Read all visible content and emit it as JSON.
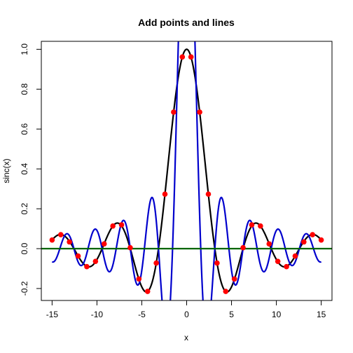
{
  "chart_data": {
    "type": "line",
    "title": "Add points and lines",
    "xlabel": "x",
    "ylabel": "sinc(x)",
    "xlim": [
      -16.2,
      16.2
    ],
    "ylim": [
      -0.26,
      1.04
    ],
    "xticks": [
      -15,
      -10,
      -5,
      0,
      5,
      10,
      15
    ],
    "xtick_labels": [
      "-15",
      "-10",
      "-5",
      "0",
      "5",
      "10",
      "15"
    ],
    "yticks": [
      -0.2,
      0.0,
      0.2,
      0.4,
      0.6,
      0.8,
      1.0
    ],
    "ytick_labels": [
      "-0.2",
      "0.0",
      "0.2",
      "0.4",
      "0.6",
      "0.8",
      "1.0"
    ],
    "grid": false,
    "series": [
      {
        "function": "sin(x)/x",
        "x_range": [
          -15,
          15
        ],
        "color": "#000000"
      },
      {
        "function": "sin(2x)/x",
        "x_range": [
          -15,
          15
        ],
        "color": "#0000cd"
      }
    ],
    "points": {
      "color": "#ff0000",
      "x": [
        -15,
        -14.0323,
        -13.0645,
        -12.0968,
        -11.129,
        -10.1613,
        -9.1935,
        -8.2258,
        -7.2581,
        -6.2903,
        -5.3226,
        -4.3548,
        -3.3871,
        -2.4194,
        -1.4516,
        -0.4839,
        0.4839,
        1.4516,
        2.4194,
        3.3871,
        4.3548,
        5.3226,
        6.2903,
        7.2581,
        8.2258,
        9.1935,
        10.1613,
        11.129,
        12.0968,
        13.0645,
        14.0323,
        15
      ],
      "y": [
        0.0433,
        0.0702,
        0.0338,
        -0.0372,
        -0.0901,
        -0.0639,
        0.0238,
        0.1135,
        0.1193,
        0.0048,
        -0.152,
        -0.2145,
        -0.0723,
        0.2734,
        0.6848,
        0.9615,
        0.9615,
        0.6848,
        0.2734,
        -0.0723,
        -0.2145,
        -0.152,
        0.0048,
        0.1193,
        0.1135,
        0.0238,
        -0.0639,
        -0.0901,
        -0.0372,
        0.0338,
        0.0702,
        0.0433
      ]
    },
    "hline": {
      "y": 0,
      "color": "#006400"
    }
  }
}
